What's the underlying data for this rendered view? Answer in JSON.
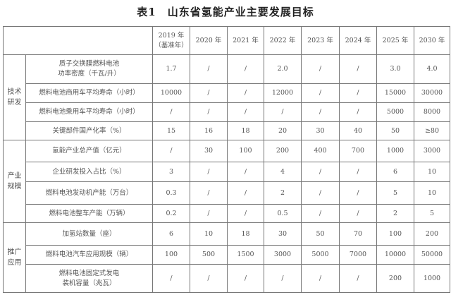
{
  "title": "表1　山东省氢能产业主要发展目标",
  "header": {
    "years": [
      {
        "year": "2019 年",
        "note": "（基准年）"
      },
      {
        "year": "2020 年"
      },
      {
        "year": "2021 年"
      },
      {
        "year": "2022 年"
      },
      {
        "year": "2023 年"
      },
      {
        "year": "2024 年"
      },
      {
        "year": "2025 年"
      },
      {
        "year": "2030 年"
      }
    ]
  },
  "sections": [
    {
      "name": [
        "技术",
        "研发"
      ],
      "rows": [
        {
          "label": [
            "质子交换膜燃料电池",
            "功率密度（千瓦/升）"
          ],
          "values": [
            "1.7",
            "/",
            "/",
            "2.0",
            "/",
            "/",
            "3.0",
            "4.0"
          ]
        },
        {
          "label": [
            "燃料电池商用车平均寿命（小时）"
          ],
          "values": [
            "10000",
            "/",
            "/",
            "12000",
            "/",
            "/",
            "15000",
            "30000"
          ]
        },
        {
          "label": [
            "燃料电池乘用车平均寿命（小时）"
          ],
          "values": [
            "/",
            "/",
            "/",
            "/",
            "/",
            "/",
            "5000",
            "8000"
          ]
        },
        {
          "label": [
            "关键部件国产化率（%）"
          ],
          "values": [
            "15",
            "16",
            "18",
            "20",
            "30",
            "40",
            "50",
            "≥80"
          ]
        }
      ]
    },
    {
      "name": [
        "产业",
        "规模"
      ],
      "rows": [
        {
          "label": [
            "氢能产业总产值（亿元）"
          ],
          "values": [
            "/",
            "30",
            "100",
            "200",
            "400",
            "700",
            "1000",
            "3000"
          ]
        },
        {
          "label": [
            "企业研发投入占比（%）"
          ],
          "values": [
            "3",
            "/",
            "/",
            "4",
            "/",
            "/",
            "6",
            "10"
          ]
        },
        {
          "label": [
            "燃料电池发动机产能（万台）"
          ],
          "values": [
            "0.3",
            "/",
            "/",
            "2",
            "/",
            "/",
            "5",
            "10"
          ]
        },
        {
          "label": [
            "燃料电池整车产能（万辆）"
          ],
          "values": [
            "0.2",
            "/",
            "/",
            "0.5",
            "/",
            "/",
            "2",
            "5"
          ]
        }
      ]
    },
    {
      "name": [
        "推广",
        "应用"
      ],
      "rows": [
        {
          "label": [
            "加氢站数量（座）"
          ],
          "values": [
            "6",
            "10",
            "18",
            "30",
            "50",
            "70",
            "100",
            "200"
          ]
        },
        {
          "label": [
            "燃料电池汽车应用规模（辆）"
          ],
          "values": [
            "100",
            "500",
            "1500",
            "3000",
            "5000",
            "7000",
            "10000",
            "50000"
          ]
        },
        {
          "label": [
            "燃料电池固定式发电",
            "装机容量（兆瓦）"
          ],
          "values": [
            "/",
            "/",
            "/",
            "/",
            "/",
            "/",
            "200",
            "1000"
          ]
        }
      ]
    }
  ]
}
